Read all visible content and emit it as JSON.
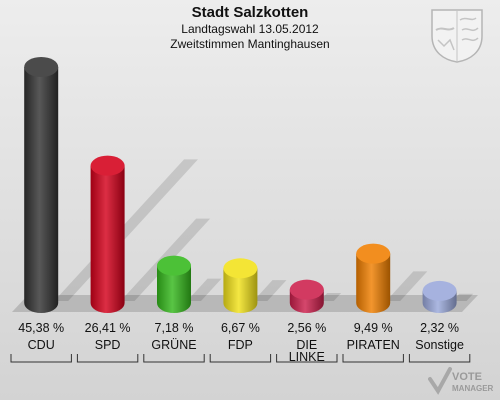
{
  "header": {
    "title": "Stadt Salzkotten",
    "subtitle_1": "Landtagswahl 13.05.2012",
    "subtitle_2": "Zweitstimmen Mantinghausen"
  },
  "watermark": {
    "line_1": "VOTE",
    "line_2": "MANAGER"
  },
  "chart_data": {
    "type": "bar",
    "title": "Stadt Salzkotten",
    "subtitle": "Landtagswahl 13.05.2012 Zweitstimmen Mantinghausen",
    "categories": [
      "CDU",
      "SPD",
      "GRÜNE",
      "FDP",
      "DIE LINKE",
      "PIRATEN",
      "Sonstige"
    ],
    "labels": [
      [
        "CDU"
      ],
      [
        "SPD"
      ],
      [
        "GRÜNE"
      ],
      [
        "FDP"
      ],
      [
        "DIE",
        "LINKE"
      ],
      [
        "PIRATEN"
      ],
      [
        "Sonstige"
      ]
    ],
    "values": [
      45.38,
      26.41,
      7.18,
      6.67,
      2.56,
      9.49,
      2.32
    ],
    "value_labels": [
      "45,38 %",
      "26,41 %",
      "7,18 %",
      "6,67 %",
      "2,56 %",
      "9,49 %",
      "2,32 %"
    ],
    "colors": [
      "#333333",
      "#d4001b",
      "#34b81c",
      "#f2e21a",
      "#cc1f4c",
      "#f07f00",
      "#9aa8db"
    ],
    "ylim": [
      0,
      45.38
    ],
    "grid": false,
    "legend": "none"
  }
}
